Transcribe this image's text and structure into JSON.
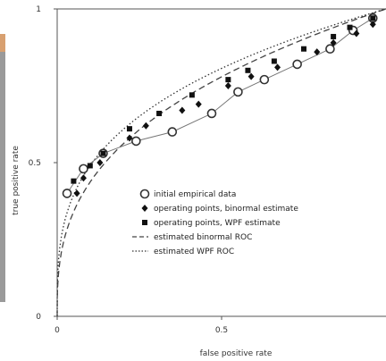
{
  "chart_data": {
    "type": "line",
    "xlabel": "false positive rate",
    "ylabel": "true positive rate",
    "xlim": [
      0,
      1
    ],
    "ylim": [
      0,
      1
    ],
    "x_ticks": [
      "0",
      "0.5"
    ],
    "y_ticks": [
      "0",
      "0.5",
      "1"
    ],
    "grid": false,
    "legend_position": "center-right",
    "series": [
      {
        "name": "initial empirical data",
        "marker": "open-circle",
        "points": [
          [
            0.03,
            0.4
          ],
          [
            0.08,
            0.48
          ],
          [
            0.14,
            0.53
          ],
          [
            0.24,
            0.57
          ],
          [
            0.35,
            0.6
          ],
          [
            0.47,
            0.66
          ],
          [
            0.55,
            0.73
          ],
          [
            0.63,
            0.77
          ],
          [
            0.73,
            0.82
          ],
          [
            0.83,
            0.87
          ],
          [
            0.9,
            0.93
          ],
          [
            0.96,
            0.97
          ]
        ]
      },
      {
        "name": "operating points, binormal estimate",
        "marker": "filled-diamond",
        "points": [
          [
            0.06,
            0.4
          ],
          [
            0.08,
            0.45
          ],
          [
            0.13,
            0.5
          ],
          [
            0.22,
            0.58
          ],
          [
            0.27,
            0.62
          ],
          [
            0.38,
            0.67
          ],
          [
            0.43,
            0.69
          ],
          [
            0.52,
            0.75
          ],
          [
            0.59,
            0.78
          ],
          [
            0.67,
            0.81
          ],
          [
            0.79,
            0.86
          ],
          [
            0.84,
            0.89
          ],
          [
            0.91,
            0.92
          ],
          [
            0.96,
            0.95
          ]
        ]
      },
      {
        "name": "operating points, WPF estimate",
        "marker": "filled-square",
        "points": [
          [
            0.05,
            0.44
          ],
          [
            0.1,
            0.49
          ],
          [
            0.14,
            0.53
          ],
          [
            0.22,
            0.61
          ],
          [
            0.31,
            0.66
          ],
          [
            0.41,
            0.72
          ],
          [
            0.52,
            0.77
          ],
          [
            0.58,
            0.8
          ],
          [
            0.66,
            0.83
          ],
          [
            0.75,
            0.87
          ],
          [
            0.84,
            0.91
          ],
          [
            0.89,
            0.94
          ],
          [
            0.96,
            0.97
          ]
        ]
      },
      {
        "name": "estimated binormal ROC",
        "style": "dashed",
        "color": "#444444",
        "curve": "binormal"
      },
      {
        "name": "estimated WPF ROC",
        "style": "dotted",
        "color": "#333333",
        "curve": "wpf"
      }
    ]
  }
}
